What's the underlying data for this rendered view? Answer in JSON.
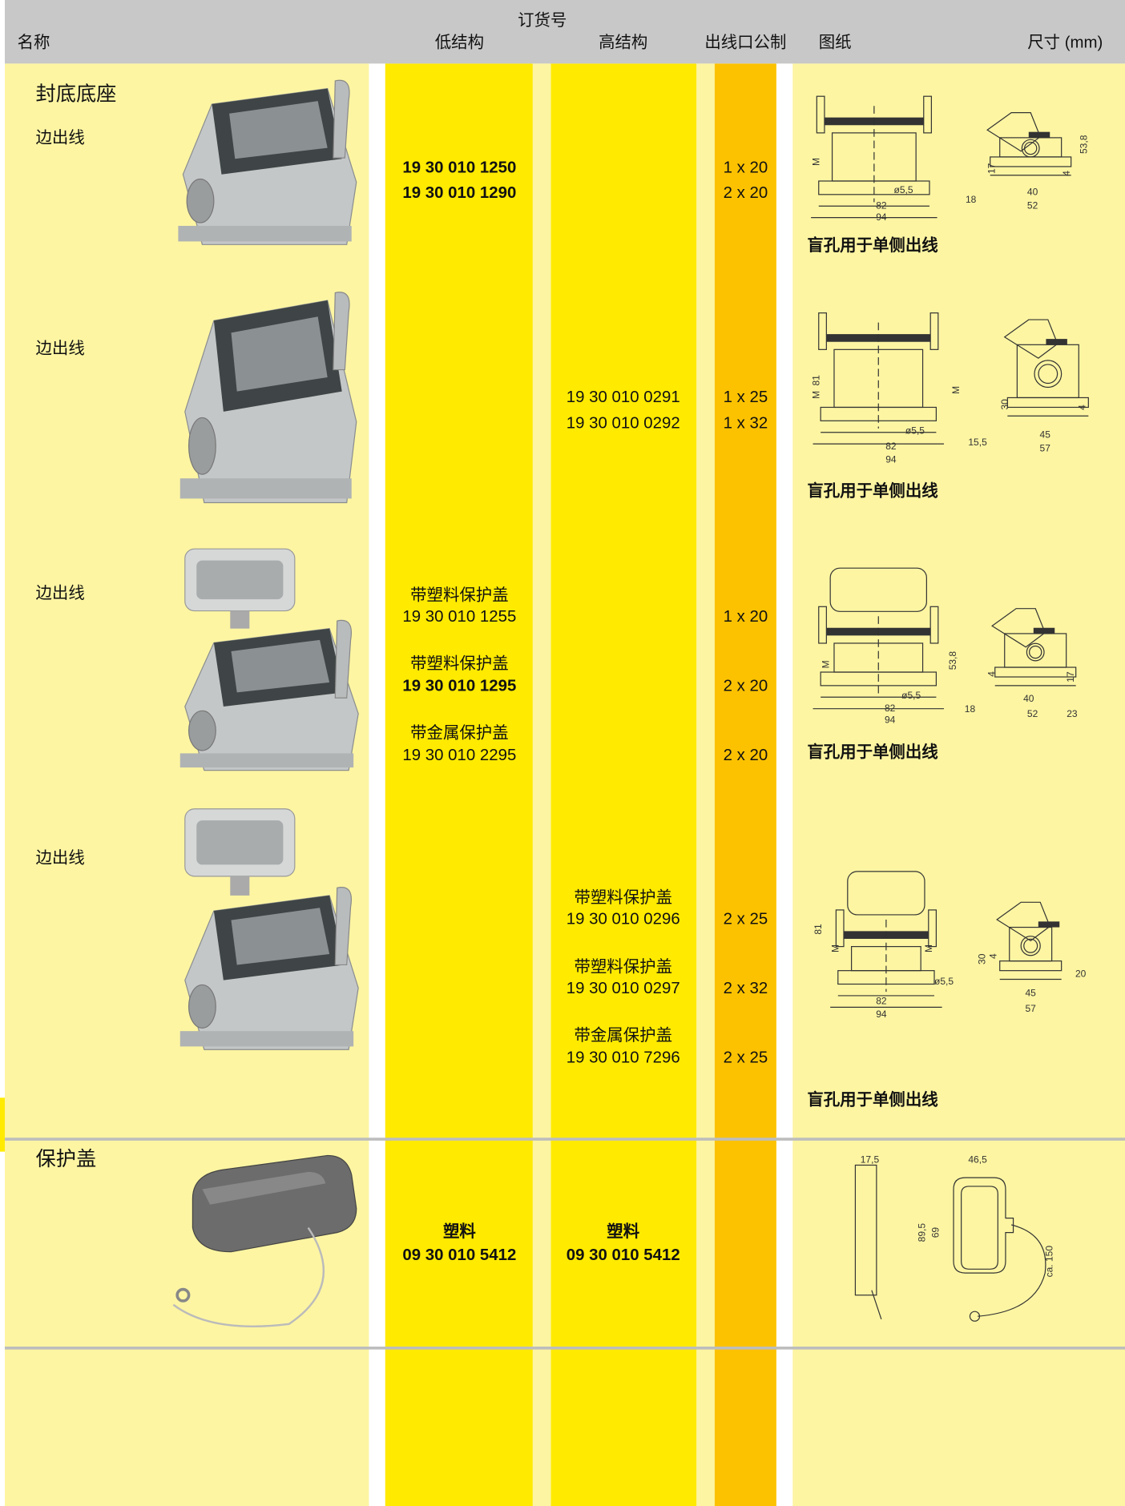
{
  "header": {
    "order_no": "订货号",
    "columns": [
      "名称",
      "低结构",
      "高结构",
      "出线口公制",
      "图纸",
      "尺寸 (mm)"
    ]
  },
  "rows": [
    {
      "section": "封底底座",
      "name": "边出线",
      "low": [
        "19 30 010 1250",
        "19 30 010 1290"
      ],
      "outlet": [
        "1 x 20",
        "2 x 20"
      ],
      "note": "盲孔用于单侧出线",
      "dims": [
        "M",
        "17",
        "82",
        "94",
        "ø5,5",
        "18",
        "40",
        "52",
        "4",
        "53,8"
      ]
    },
    {
      "name": "边出线",
      "high": [
        "19 30 010 0291",
        "19 30 010 0292"
      ],
      "outlet": [
        "1 x 25",
        "1 x 32"
      ],
      "note": "盲孔用于单侧出线",
      "dims": [
        "81",
        "M",
        "M",
        "30",
        "4",
        "ø5,5",
        "82",
        "94",
        "15,5",
        "45",
        "57"
      ]
    },
    {
      "name": "边出线",
      "low": [
        "带塑料保护盖",
        "19 30 010 1255",
        "带塑料保护盖",
        "19 30 010 1295",
        "带金属保护盖",
        "19 30 010 2295"
      ],
      "outlet": [
        "1 x 20",
        "2 x 20",
        "2 x 20"
      ],
      "note": "盲孔用于单侧出线",
      "dims": [
        "M",
        "53,8",
        "4",
        "17",
        "ø5,5",
        "82",
        "94",
        "18",
        "40",
        "52",
        "23"
      ]
    },
    {
      "name": "边出线",
      "high": [
        "带塑料保护盖",
        "19 30 010 0296",
        "带塑料保护盖",
        "19 30 010 0297",
        "带金属保护盖",
        "19 30 010 7296"
      ],
      "outlet": [
        "2 x 25",
        "2 x 32",
        "2 x 25"
      ],
      "note": "盲孔用于单侧出线",
      "dims": [
        "81",
        "M",
        "M",
        "30",
        "4",
        "ø5,5",
        "82",
        "94",
        "20",
        "45",
        "57"
      ]
    },
    {
      "section": "保护盖",
      "low": [
        "塑料",
        "09 30 010 5412"
      ],
      "high": [
        "塑料",
        "09 30 010 5412"
      ],
      "dims": [
        "17,5",
        "46,5",
        "89,5",
        "69",
        "ca. 150"
      ]
    }
  ]
}
